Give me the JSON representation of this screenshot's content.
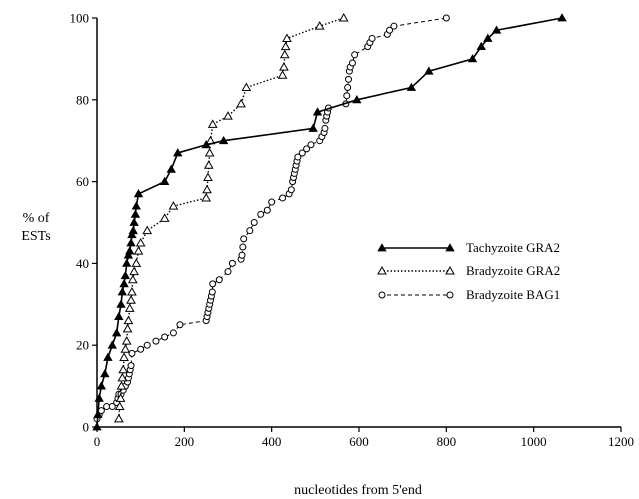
{
  "chart_data": {
    "type": "line",
    "xlabel": "nucleotides from 5'end",
    "ylabel_lines": [
      "% of",
      "ESTs"
    ],
    "xlim": [
      0,
      1200
    ],
    "ylim": [
      0,
      100
    ],
    "x_ticks": [
      0,
      200,
      400,
      600,
      800,
      1000,
      1200
    ],
    "y_ticks": [
      0,
      20,
      40,
      60,
      80,
      100
    ],
    "x_tick_labels": [
      "0",
      "200",
      "400",
      "600",
      "800",
      "1000",
      "1200"
    ],
    "y_tick_labels": [
      "0",
      "20",
      "40",
      "60",
      "80",
      "100"
    ],
    "grid": false,
    "legend_position": "right",
    "series": [
      {
        "name": "Tachyzoite GRA2",
        "line_style": "solid",
        "marker": "filled-triangle",
        "x": [
          0,
          2,
          5,
          10,
          18,
          25,
          35,
          45,
          50,
          55,
          58,
          62,
          65,
          68,
          72,
          75,
          78,
          80,
          83,
          85,
          88,
          90,
          95,
          155,
          170,
          185,
          250,
          290,
          495,
          505,
          595,
          720,
          760,
          860,
          880,
          895,
          915,
          1065
        ],
        "y": [
          0,
          3,
          7,
          10,
          13,
          17,
          20,
          23,
          27,
          30,
          33,
          35,
          37,
          40,
          42,
          43,
          45,
          47,
          48,
          50,
          52,
          54,
          57,
          60,
          63,
          67,
          69,
          70,
          73,
          77,
          80,
          83,
          87,
          90,
          93,
          95,
          97,
          100
        ]
      },
      {
        "name": "Bradyzoite GRA2",
        "line_style": "dotted",
        "marker": "open-triangle",
        "x": [
          50,
          52,
          54,
          56,
          58,
          60,
          62,
          65,
          68,
          70,
          72,
          75,
          78,
          80,
          82,
          85,
          90,
          95,
          100,
          115,
          155,
          175,
          250,
          252,
          254,
          256,
          258,
          260,
          265,
          300,
          330,
          342,
          425,
          428,
          430,
          432,
          435,
          510,
          565
        ],
        "y": [
          2,
          5,
          7,
          10,
          12,
          14,
          17,
          19,
          21,
          24,
          26,
          29,
          31,
          33,
          36,
          38,
          40,
          43,
          45,
          48,
          51,
          54,
          56,
          58,
          61,
          64,
          67,
          70,
          74,
          76,
          79,
          83,
          86,
          88,
          91,
          93,
          95,
          98,
          100
        ]
      },
      {
        "name": "Bradyzoite BAG1",
        "line_style": "dashed",
        "marker": "open-circle",
        "x": [
          0,
          5,
          10,
          22,
          35,
          45,
          48,
          50,
          55,
          60,
          65,
          70,
          72,
          74,
          76,
          78,
          80,
          100,
          115,
          135,
          155,
          175,
          190,
          250,
          252,
          254,
          256,
          258,
          260,
          262,
          264,
          265,
          280,
          300,
          310,
          330,
          332,
          334,
          336,
          350,
          360,
          375,
          390,
          400,
          425,
          440,
          445,
          448,
          450,
          452,
          454,
          456,
          458,
          460,
          470,
          480,
          490,
          510,
          515,
          520,
          522,
          524,
          526,
          528,
          530,
          570,
          572,
          574,
          576,
          578,
          580,
          585,
          590,
          620,
          625,
          630,
          665,
          670,
          680,
          800
        ],
        "y": [
          2,
          3,
          4,
          5,
          5,
          6,
          7,
          8,
          8,
          9,
          10,
          11,
          12,
          13,
          14,
          15,
          18,
          19,
          20,
          21,
          22,
          23,
          25,
          26,
          27,
          28,
          29,
          30,
          31,
          32,
          33,
          35,
          36,
          38,
          40,
          41,
          42,
          44,
          46,
          48,
          50,
          52,
          53,
          55,
          56,
          57,
          58,
          60,
          61,
          62,
          63,
          64,
          65,
          66,
          67,
          68,
          69,
          70,
          71,
          72,
          73,
          75,
          76,
          77,
          78,
          79,
          81,
          83,
          85,
          87,
          88,
          89,
          91,
          93,
          94,
          95,
          96,
          97,
          98,
          100
        ]
      }
    ]
  }
}
